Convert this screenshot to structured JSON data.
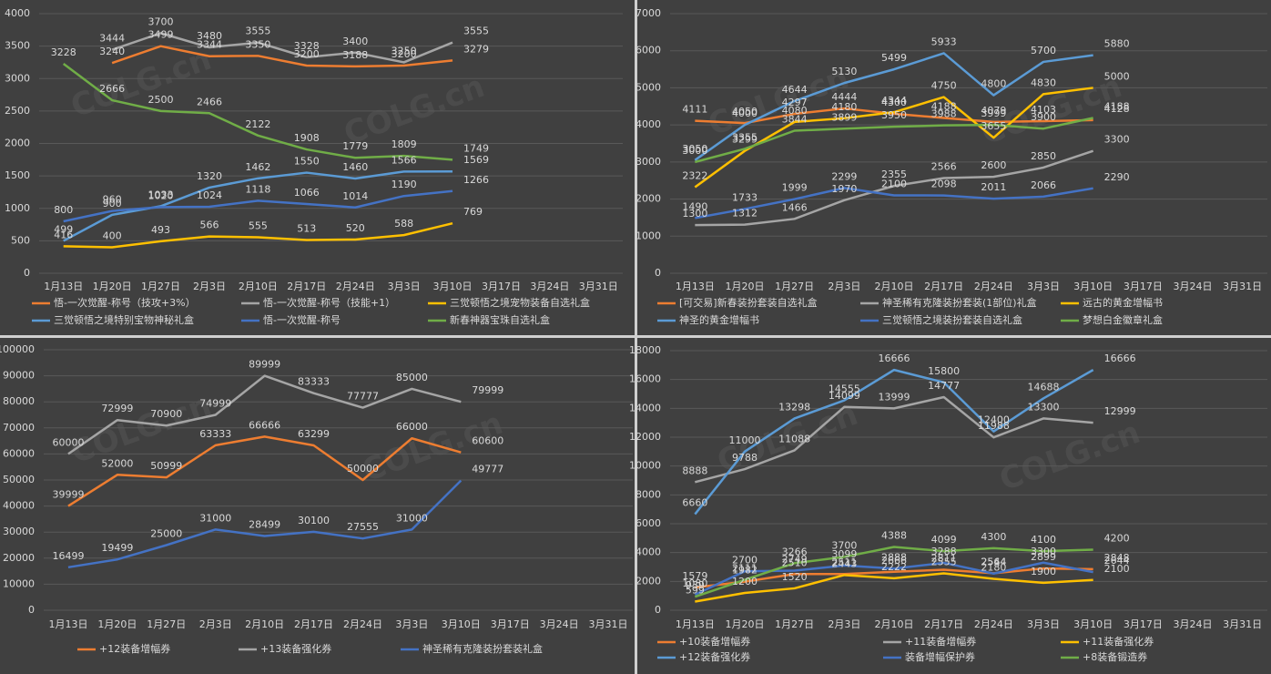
{
  "watermark": "COLG.cn",
  "chart_data": [
    {
      "type": "line",
      "categories": [
        "1月13日",
        "1月20日",
        "1月27日",
        "2月3日",
        "2月10日",
        "2月17日",
        "2月24日",
        "3月3日",
        "3月10日",
        "3月17日",
        "3月24日",
        "3月31日"
      ],
      "ylim": [
        0,
        4000
      ],
      "yticks": [
        0,
        500,
        1000,
        1500,
        2000,
        2500,
        3000,
        3500,
        4000
      ],
      "grid": true,
      "series": [
        {
          "name": "悟-一次觉醒-称号（技攻+3%）",
          "color": "#ed7d31",
          "values": [
            null,
            3240,
            3499,
            3344,
            3350,
            3200,
            3188,
            3200,
            3279,
            null,
            null,
            null
          ]
        },
        {
          "name": "悟-一次觉醒-称号（技能+1）",
          "color": "#a5a5a5",
          "values": [
            null,
            3444,
            3700,
            3480,
            3555,
            3328,
            3400,
            3250,
            3555,
            null,
            null,
            null
          ]
        },
        {
          "name": "三觉顿悟之境宠物装备自选礼盒",
          "color": "#ffc000",
          "values": [
            416,
            400,
            493,
            566,
            555,
            513,
            520,
            588,
            769,
            null,
            null,
            null
          ]
        },
        {
          "name": "三觉顿悟之境特别宝物神秘礼盒",
          "color": "#5b9bd5",
          "values": [
            499,
            900,
            1033,
            1320,
            1462,
            1550,
            1460,
            1566,
            1569,
            null,
            null,
            null
          ]
        },
        {
          "name": "悟-一次觉醒-称号",
          "color": "#4472c4",
          "values": [
            800,
            960,
            1020,
            1024,
            1118,
            1066,
            1014,
            1190,
            1266,
            null,
            null,
            null
          ]
        },
        {
          "name": "新春神器宝珠自选礼盒",
          "color": "#70ad47",
          "values": [
            3228,
            2666,
            2500,
            2466,
            2122,
            1908,
            1779,
            1809,
            1749,
            null,
            null,
            null
          ]
        }
      ]
    },
    {
      "type": "line",
      "categories": [
        "1月13日",
        "1月20日",
        "1月27日",
        "2月3日",
        "2月10日",
        "2月17日",
        "2月24日",
        "3月3日",
        "3月10日",
        "3月17日",
        "3月24日",
        "3月31日"
      ],
      "ylim": [
        0,
        7000
      ],
      "yticks": [
        0,
        1000,
        2000,
        3000,
        4000,
        5000,
        6000,
        7000
      ],
      "grid": true,
      "series": [
        {
          "name": "[可交易]新春装扮套装自选礼盒",
          "color": "#ed7d31",
          "values": [
            4111,
            4050,
            4297,
            4444,
            4300,
            4188,
            4079,
            4103,
            4128,
            null,
            null,
            null
          ]
        },
        {
          "name": "神圣稀有克隆装扮套装(1部位)礼盒",
          "color": "#a5a5a5",
          "values": [
            1300,
            1312,
            1466,
            1970,
            2355,
            2566,
            2600,
            2850,
            3300,
            null,
            null,
            null
          ]
        },
        {
          "name": "远古的黄金增幅书",
          "color": "#ffc000",
          "values": [
            2322,
            3299,
            4080,
            4180,
            4344,
            4750,
            3655,
            4830,
            5000,
            null,
            null,
            null
          ]
        },
        {
          "name": "神圣的黄金增幅书",
          "color": "#5b9bd5",
          "values": [
            3050,
            4000,
            4644,
            5130,
            5499,
            5933,
            4800,
            5700,
            5880,
            null,
            null,
            null
          ]
        },
        {
          "name": "三觉顿悟之境装扮套装自选礼盒",
          "color": "#4472c4",
          "values": [
            1490,
            1733,
            1999,
            2299,
            2100,
            2098,
            2011,
            2066,
            2290,
            null,
            null,
            null
          ]
        },
        {
          "name": "梦想白金徽章礼盒",
          "color": "#70ad47",
          "values": [
            3000,
            3355,
            3844,
            3899,
            3950,
            3988,
            3999,
            3900,
            4188,
            null,
            null,
            null
          ]
        }
      ]
    },
    {
      "type": "line",
      "categories": [
        "1月13日",
        "1月20日",
        "1月27日",
        "2月3日",
        "2月10日",
        "2月17日",
        "2月24日",
        "3月3日",
        "3月10日",
        "3月17日",
        "3月24日",
        "3月31日"
      ],
      "ylim": [
        0,
        100000
      ],
      "yticks": [
        0,
        10000,
        20000,
        30000,
        40000,
        50000,
        60000,
        70000,
        80000,
        90000,
        100000
      ],
      "grid": true,
      "series": [
        {
          "name": "+12装备增幅券",
          "color": "#ed7d31",
          "values": [
            39999,
            52000,
            50999,
            63333,
            66666,
            63299,
            50000,
            66000,
            60600,
            null,
            null,
            null
          ]
        },
        {
          "name": "+13装备强化券",
          "color": "#a5a5a5",
          "values": [
            60000,
            72999,
            70900,
            74999,
            89999,
            83333,
            77777,
            85000,
            79999,
            null,
            null,
            null
          ]
        },
        {
          "name": "神圣稀有克隆装扮套装礼盒",
          "color": "#4472c4",
          "values": [
            16499,
            19499,
            25000,
            31000,
            28499,
            30100,
            27555,
            31000,
            49777,
            null,
            null,
            null
          ]
        }
      ]
    },
    {
      "type": "line",
      "categories": [
        "1月13日",
        "1月20日",
        "1月27日",
        "2月3日",
        "2月10日",
        "2月17日",
        "2月24日",
        "3月3日",
        "3月10日",
        "3月17日",
        "3月24日",
        "3月31日"
      ],
      "ylim": [
        0,
        18000
      ],
      "yticks": [
        0,
        2000,
        4000,
        6000,
        8000,
        10000,
        12000,
        14000,
        16000,
        18000
      ],
      "grid": true,
      "series": [
        {
          "name": "+10装备增幅券",
          "color": "#ed7d31",
          "values": [
            1579,
            1982,
            2510,
            2511,
            2666,
            2811,
            2564,
            2899,
            2848,
            null,
            null,
            null
          ]
        },
        {
          "name": "+11装备增幅券",
          "color": "#a5a5a5",
          "values": [
            8888,
            9788,
            11088,
            14099,
            13999,
            14777,
            11988,
            13300,
            12999,
            null,
            null,
            null
          ]
        },
        {
          "name": "+11装备强化券",
          "color": "#ffc000",
          "values": [
            599,
            1200,
            1520,
            2443,
            2222,
            2555,
            2180,
            1900,
            2100,
            null,
            null,
            null
          ]
        },
        {
          "name": "+12装备强化券",
          "color": "#5b9bd5",
          "values": [
            6660,
            11000,
            13298,
            14555,
            16666,
            15800,
            12400,
            14688,
            16666,
            null,
            null,
            null
          ]
        },
        {
          "name": "装备增幅保护券",
          "color": "#4472c4",
          "values": [
            1080,
            2700,
            2749,
            3099,
            2888,
            3288,
            2544,
            3300,
            2644,
            null,
            null,
            null
          ]
        },
        {
          "name": "+8装备锻造券",
          "color": "#70ad47",
          "values": [
            939,
            2111,
            3266,
            3700,
            4388,
            4099,
            4300,
            4100,
            4200,
            null,
            null,
            null
          ]
        }
      ]
    }
  ]
}
